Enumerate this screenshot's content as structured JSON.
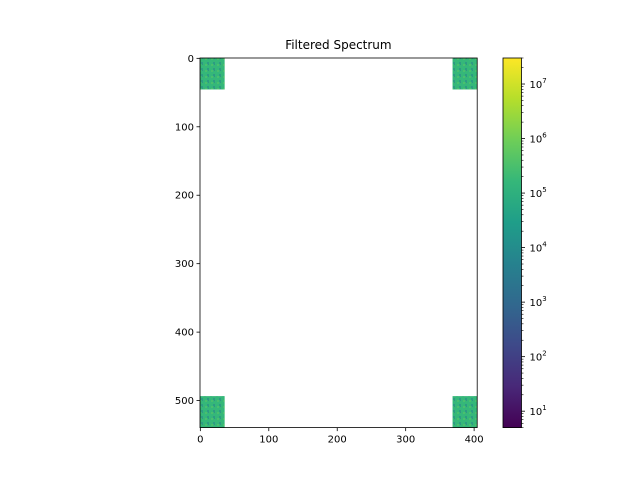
{
  "chart_data": {
    "type": "heatmap",
    "title": "Filtered Spectrum",
    "xlabel": "",
    "ylabel": "",
    "x_range": [
      -0.5,
      404.5
    ],
    "y_range": [
      539.5,
      -0.5
    ],
    "x_ticks": [
      0,
      100,
      200,
      300,
      400
    ],
    "y_ticks": [
      0,
      100,
      200,
      300,
      400,
      500
    ],
    "colorbar": {
      "scale": "log",
      "range": [
        5,
        30000000
      ],
      "ticks": [
        {
          "value": 10,
          "mant": "10",
          "exp": "1"
        },
        {
          "value": 100,
          "mant": "10",
          "exp": "2"
        },
        {
          "value": 1000,
          "mant": "10",
          "exp": "3"
        },
        {
          "value": 10000,
          "mant": "10",
          "exp": "4"
        },
        {
          "value": 100000,
          "mant": "10",
          "exp": "5"
        },
        {
          "value": 1000000,
          "mant": "10",
          "exp": "6"
        },
        {
          "value": 10000000,
          "mant": "10",
          "exp": "7"
        }
      ],
      "colormap": [
        "#440154",
        "#482878",
        "#3e4989",
        "#31688e",
        "#26828e",
        "#1f9e89",
        "#35b779",
        "#6ece58",
        "#b5de2b",
        "#fde725"
      ]
    },
    "regions": [
      {
        "x": [
          0,
          35
        ],
        "y": [
          0,
          45
        ],
        "typical_value": 100000
      },
      {
        "x": [
          369,
          404
        ],
        "y": [
          0,
          45
        ],
        "typical_value": 100000
      },
      {
        "x": [
          0,
          35
        ],
        "y": [
          494,
          539
        ],
        "typical_value": 100000
      },
      {
        "x": [
          369,
          404
        ],
        "y": [
          494,
          539
        ],
        "typical_value": 100000
      }
    ],
    "background": "masked (white)",
    "grid": false
  }
}
